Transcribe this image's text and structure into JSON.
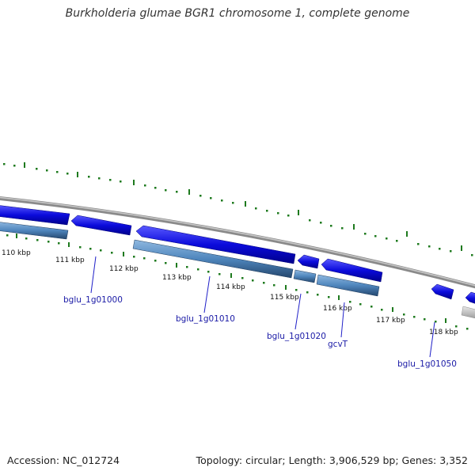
{
  "title": "Burkholderia glumae BGR1 chromosome 1, complete genome",
  "footer": {
    "accession": "Accession: NC_012724",
    "stats": "Topology: circular; Length: 3,906,529 bp; Genes: 3,352"
  },
  "colors": {
    "forward_gene": "#0b0bdc",
    "reverse_gene": "#4f86bd",
    "backbone": "#8a8a8a",
    "tick": "#1e7a1e",
    "label_line": "#2020c8",
    "label_text": "#1a1aa6",
    "partial_gene": "#bdbdbd"
  },
  "kbp_labels": [
    "110 kbp",
    "111 kbp",
    "112 kbp",
    "113 kbp",
    "114 kbp",
    "115 kbp",
    "116 kbp",
    "117 kbp",
    "118 kbp"
  ],
  "gene_labels": [
    "bglu_1g01000",
    "bglu_1g01010",
    "bglu_1g01020",
    "gcvT",
    "bglu_1g01050"
  ],
  "icons": {
    "forward_gene": "blue-arrow-gene-icon",
    "reverse_gene": "steelblue-bar-gene-icon"
  }
}
